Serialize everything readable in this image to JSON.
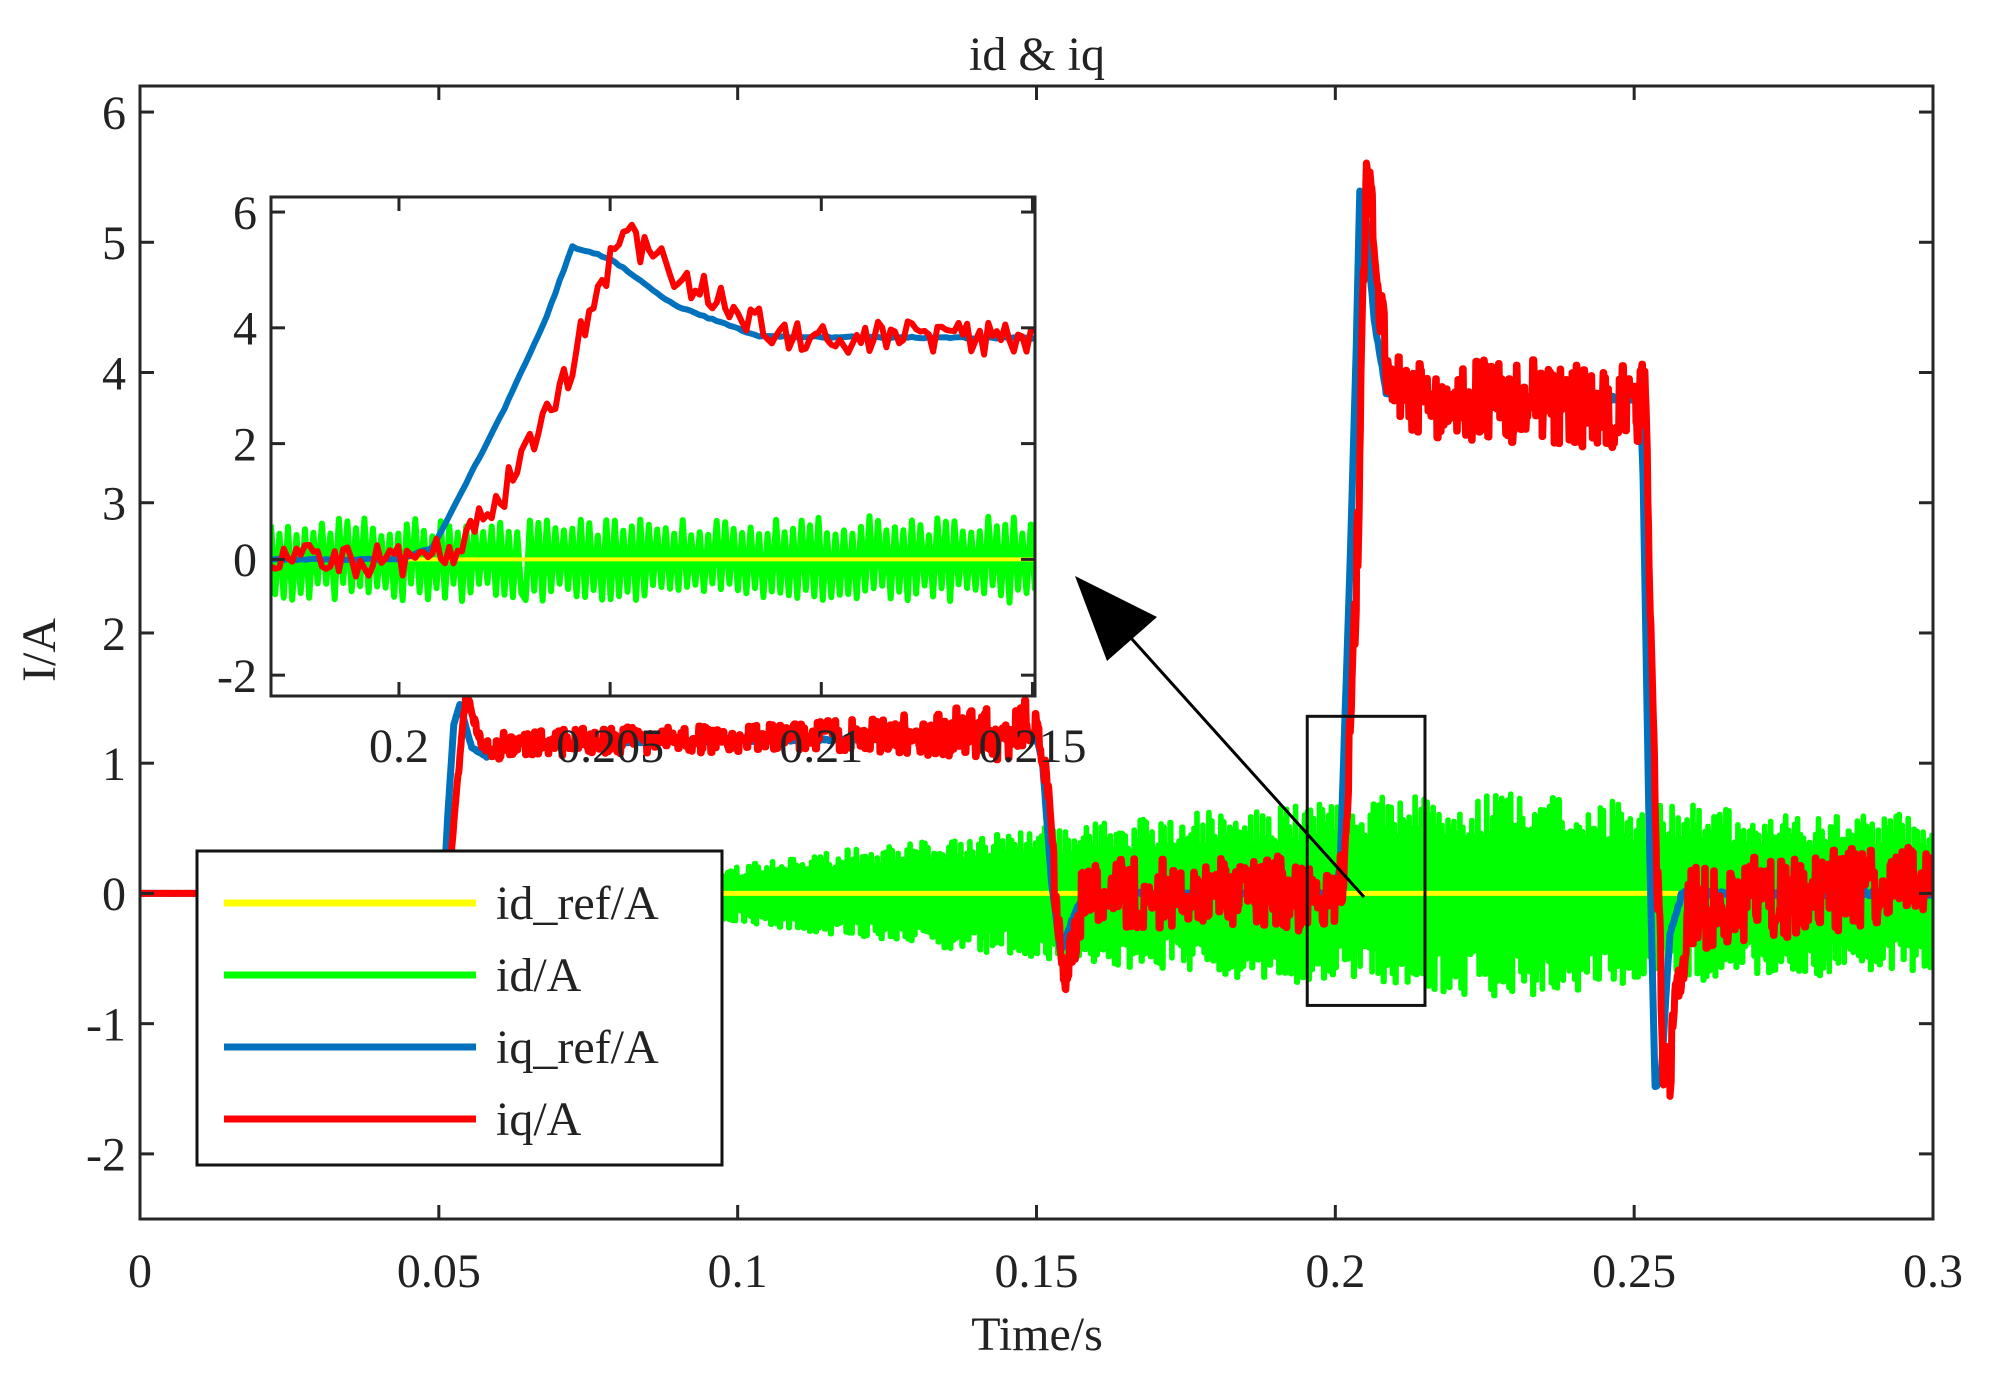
{
  "chart_data": {
    "type": "line",
    "title": "id & iq",
    "xlabel": "Time/s",
    "ylabel": "I/A",
    "xlim": [
      0,
      0.3
    ],
    "ylim": [
      -2.5,
      6.2
    ],
    "xticks": [
      "0",
      "0.05",
      "0.1",
      "0.15",
      "0.2",
      "0.25",
      "0.3"
    ],
    "xtick_values": [
      0,
      0.05,
      0.1,
      0.15,
      0.2,
      0.25,
      0.3
    ],
    "yticks": [
      "-2",
      "-1",
      "0",
      "1",
      "2",
      "3",
      "4",
      "5",
      "6"
    ],
    "ytick_values": [
      -2,
      -1,
      0,
      1,
      2,
      3,
      4,
      5,
      6
    ],
    "grid": false,
    "legend_position": "lower-left",
    "series": [
      {
        "name": "id_ref/A",
        "color": "#ffff00",
        "points": [
          [
            0,
            0
          ],
          [
            0.3,
            0
          ]
        ],
        "noise_amplitude": [
          [
            0,
            0
          ],
          [
            0.3,
            0
          ]
        ]
      },
      {
        "name": "id/A",
        "color": "#00ff00",
        "points": [
          [
            0,
            0
          ],
          [
            0.3,
            0
          ]
        ],
        "noise_amplitude": [
          [
            0,
            0
          ],
          [
            0.05,
            0.02
          ],
          [
            0.09,
            0.15
          ],
          [
            0.12,
            0.35
          ],
          [
            0.15,
            0.5
          ],
          [
            0.2,
            0.72
          ],
          [
            0.23,
            0.8
          ],
          [
            0.25,
            0.7
          ],
          [
            0.3,
            0.6
          ]
        ]
      },
      {
        "name": "iq_ref/A",
        "color": "#0072bd",
        "points": [
          [
            0,
            0
          ],
          [
            0.0508,
            0
          ],
          [
            0.0515,
            0.6
          ],
          [
            0.0525,
            1.3
          ],
          [
            0.0535,
            1.45
          ],
          [
            0.0555,
            1.12
          ],
          [
            0.058,
            1.05
          ],
          [
            0.062,
            1.15
          ],
          [
            0.15,
            1.2
          ],
          [
            0.151,
            1.0
          ],
          [
            0.1525,
            0.1
          ],
          [
            0.154,
            -0.45
          ],
          [
            0.156,
            -0.2
          ],
          [
            0.158,
            0
          ],
          [
            0.2,
            0
          ],
          [
            0.2008,
            0.2
          ],
          [
            0.2025,
            2.6
          ],
          [
            0.2035,
            4.2
          ],
          [
            0.2041,
            5.4
          ],
          [
            0.205,
            5.2
          ],
          [
            0.2065,
            4.4
          ],
          [
            0.2085,
            3.85
          ],
          [
            0.215,
            3.82
          ],
          [
            0.251,
            3.8
          ],
          [
            0.2515,
            3.2
          ],
          [
            0.2525,
            0.5
          ],
          [
            0.2535,
            -1.5
          ],
          [
            0.2545,
            -1.4
          ],
          [
            0.256,
            -0.3
          ],
          [
            0.258,
            0
          ],
          [
            0.3,
            0
          ]
        ],
        "noise_amplitude": [
          [
            0,
            0
          ],
          [
            0.3,
            0.02
          ]
        ]
      },
      {
        "name": "iq/A",
        "color": "#ff0000",
        "points": [
          [
            0,
            0
          ],
          [
            0.0515,
            0
          ],
          [
            0.053,
            0.8
          ],
          [
            0.0545,
            1.5
          ],
          [
            0.0555,
            1.4
          ],
          [
            0.0575,
            1.1
          ],
          [
            0.062,
            1.15
          ],
          [
            0.15,
            1.25
          ],
          [
            0.1515,
            1.1
          ],
          [
            0.153,
            0.2
          ],
          [
            0.1545,
            -0.5
          ],
          [
            0.1555,
            -0.55
          ],
          [
            0.157,
            -0.1
          ],
          [
            0.16,
            0
          ],
          [
            0.2,
            0
          ],
          [
            0.2014,
            0.1
          ],
          [
            0.2028,
            1.5
          ],
          [
            0.2038,
            2.8
          ],
          [
            0.2045,
            4.3
          ],
          [
            0.2053,
            5.6
          ],
          [
            0.2062,
            5.1
          ],
          [
            0.2075,
            4.5
          ],
          [
            0.209,
            3.85
          ],
          [
            0.215,
            3.8
          ],
          [
            0.2518,
            3.75
          ],
          [
            0.2525,
            2.6
          ],
          [
            0.2538,
            0.2
          ],
          [
            0.2548,
            -1.2
          ],
          [
            0.2558,
            -1.6
          ],
          [
            0.2572,
            -0.8
          ],
          [
            0.259,
            -0.1
          ],
          [
            0.3,
            0.1
          ]
        ],
        "noise_amplitude": [
          [
            0,
            0
          ],
          [
            0.0515,
            0
          ],
          [
            0.06,
            0.1
          ],
          [
            0.12,
            0.12
          ],
          [
            0.15,
            0.25
          ],
          [
            0.2,
            0.3
          ],
          [
            0.215,
            0.3
          ],
          [
            0.25,
            0.35
          ],
          [
            0.3,
            0.3
          ]
        ]
      }
    ],
    "inset": {
      "xlim": [
        0.19697,
        0.21506
      ],
      "ylim": [
        -2.36,
        6.26
      ],
      "xticks": [
        "0.2",
        "0.205",
        "0.21",
        "0.215"
      ],
      "xtick_values": [
        0.2,
        0.205,
        0.21,
        0.215
      ],
      "yticks": [
        "-2",
        "0",
        "2",
        "4",
        "6"
      ],
      "ytick_values": [
        -2,
        0,
        2,
        4,
        6
      ]
    },
    "zoom_region": {
      "x": [
        0.1953,
        0.215
      ],
      "y": [
        -0.86,
        1.36
      ]
    }
  }
}
